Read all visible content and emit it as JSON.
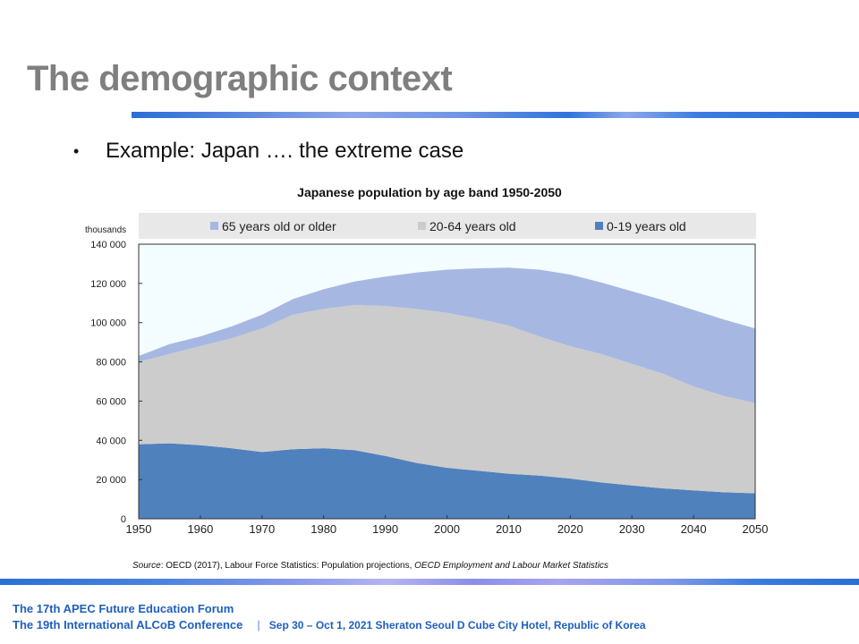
{
  "slide": {
    "title": "The demographic context",
    "bullet_symbol": "•",
    "bullet": "Example: Japan …. the extreme case"
  },
  "colors": {
    "age65": "#a6b8e2",
    "age20_64": "#cccccc",
    "age0_19": "#4f81bd",
    "plot_bg": "#f3fdff",
    "title_gray": "#7f7f7f",
    "footer_blue": "#1f5fbf"
  },
  "chart_data": {
    "type": "area",
    "stacked": true,
    "title": "Japanese population by age band 1950-2050",
    "ylabel": "thousands",
    "xlabel": "",
    "xlim": [
      1950,
      2050
    ],
    "ylim": [
      0,
      140000
    ],
    "grid": false,
    "legend_position": "top",
    "x_ticks": [
      "1950",
      "1960",
      "1970",
      "1980",
      "1990",
      "2000",
      "2010",
      "2020",
      "2030",
      "2040",
      "2050"
    ],
    "y_ticks": [
      "0",
      "20 000",
      "40 000",
      "60 000",
      "80 000",
      "100 000",
      "120 000",
      "140 000"
    ],
    "x": [
      1950,
      1955,
      1960,
      1965,
      1970,
      1975,
      1980,
      1985,
      1990,
      1995,
      2000,
      2005,
      2010,
      2015,
      2020,
      2025,
      2030,
      2035,
      2040,
      2045,
      2050
    ],
    "series": [
      {
        "name": "0-19 years old",
        "color": "#4f81bd",
        "values": [
          38000,
          38500,
          37500,
          36000,
          34000,
          35500,
          36000,
          35000,
          32000,
          28500,
          26000,
          24500,
          23000,
          22000,
          20500,
          18500,
          17000,
          15500,
          14500,
          13500,
          13000
        ]
      },
      {
        "name": "20-64 years old",
        "color": "#cccccc",
        "values": [
          42000,
          45500,
          50500,
          56000,
          63000,
          68500,
          71000,
          74000,
          76500,
          78500,
          79000,
          77500,
          75500,
          71000,
          67500,
          65500,
          62000,
          58500,
          53000,
          49000,
          46000
        ]
      },
      {
        "name": "65 years old or older",
        "color": "#a6b8e2",
        "values": [
          3000,
          5000,
          5000,
          6000,
          7000,
          8000,
          10000,
          12000,
          15000,
          18500,
          22000,
          25700,
          29500,
          34000,
          36500,
          36500,
          37000,
          37500,
          39000,
          39000,
          38000
        ]
      }
    ],
    "legend_order": [
      "65 years old or older",
      "20-64 years old",
      "0-19 years old"
    ]
  },
  "source": {
    "label": "Source",
    "text": ": OECD (2017), Labour Force Statistics: Population projections, ",
    "publication": "OECD Employment and Labour Market Statistics"
  },
  "footer": {
    "line1": "The 17th APEC Future Education Forum",
    "line2": "The 19th International ALCoB Conference",
    "separator": "|",
    "venue": "Sep 30 – Oct 1, 2021 Sheraton Seoul D Cube City Hotel, Republic of Korea"
  }
}
